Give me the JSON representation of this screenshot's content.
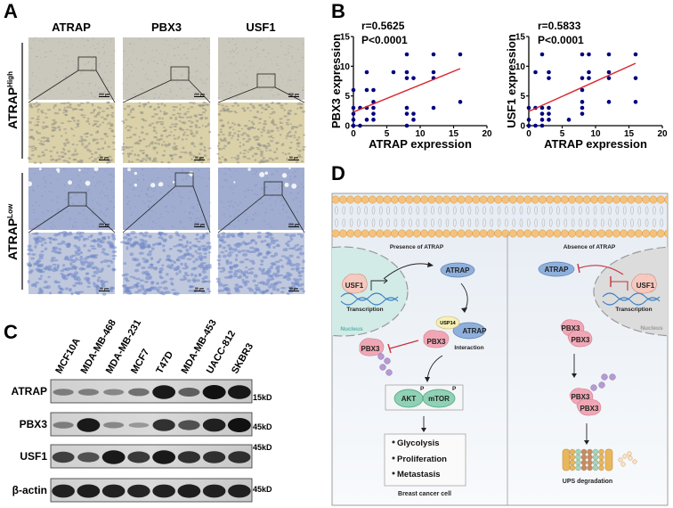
{
  "panel_labels": {
    "a": "A",
    "b": "B",
    "c": "C",
    "d": "D"
  },
  "panel_a": {
    "columns": [
      "ATRAP",
      "PBX3",
      "USF1"
    ],
    "rows": [
      {
        "base": "ATRAP",
        "sup": "High"
      },
      {
        "base": "ATRAP",
        "sup": "Low"
      }
    ],
    "scale_bars": {
      "low_mag": "200 μm",
      "high_mag": "50 μm"
    }
  },
  "chart_data": [
    {
      "type": "scatter",
      "xlabel": "ATRAP expression",
      "ylabel": "PBX3 expression",
      "xlim": [
        0,
        20
      ],
      "ylim": [
        0,
        15
      ],
      "xticks": [
        "0",
        "5",
        "10",
        "15",
        "20"
      ],
      "yticks": [
        "0",
        "5",
        "10",
        "15"
      ],
      "annotations": [
        "r=0.5625",
        "P<0.0001"
      ],
      "grid": false,
      "point_color": "#00007f",
      "line_color": "#d9262b",
      "points": {
        "x": [
          0,
          0,
          0,
          0,
          0,
          1,
          1,
          2,
          2,
          2,
          2,
          3,
          3,
          3,
          3,
          3,
          6,
          8,
          8,
          8,
          8,
          8,
          8,
          9,
          9,
          9,
          12,
          12,
          12,
          12,
          16,
          16
        ],
        "y": [
          6,
          3,
          2,
          1,
          0,
          3,
          0,
          9,
          6,
          3,
          1,
          6,
          4,
          3,
          2,
          1,
          9,
          12,
          9,
          8,
          3,
          2,
          0,
          8,
          2,
          1,
          12,
          9,
          8,
          3,
          12,
          4
        ]
      },
      "fit_line": {
        "x": [
          0,
          16
        ],
        "y": [
          2.3,
          9.6
        ]
      }
    },
    {
      "type": "scatter",
      "xlabel": "ATRAP expression",
      "ylabel": "USF1 expression",
      "xlim": [
        0,
        20
      ],
      "ylim": [
        0,
        15
      ],
      "xticks": [
        "0",
        "5",
        "10",
        "15",
        "20"
      ],
      "yticks": [
        "0",
        "5",
        "10",
        "15"
      ],
      "annotations": [
        "r=0.5833",
        "P<0.0001"
      ],
      "grid": false,
      "point_color": "#00007f",
      "line_color": "#d9262b",
      "points": {
        "x": [
          0,
          0,
          0,
          1,
          1,
          1,
          2,
          2,
          2,
          2,
          2,
          3,
          3,
          3,
          3,
          3,
          6,
          8,
          8,
          8,
          8,
          8,
          8,
          9,
          9,
          9,
          12,
          12,
          12,
          12,
          16,
          16,
          16
        ],
        "y": [
          3,
          1,
          0,
          9,
          3,
          0,
          12,
          3,
          2,
          1,
          0,
          9,
          8,
          3,
          2,
          1,
          1,
          12,
          8,
          6,
          4,
          3,
          2,
          12,
          9,
          8,
          12,
          9,
          8,
          4,
          12,
          8,
          4
        ]
      },
      "fit_line": {
        "x": [
          0,
          16
        ],
        "y": [
          2.4,
          10.5
        ]
      }
    }
  ],
  "panel_c": {
    "lanes": [
      "MCF10A",
      "MDA-MB-468",
      "MDA-MB-231",
      "MCF7",
      "T47D",
      "MDA-MB-453",
      "UACC-812",
      "SKBR3"
    ],
    "blots": [
      {
        "label": "ATRAP",
        "marker": "15kD",
        "intensities": [
          0.3,
          0.3,
          0.25,
          0.4,
          0.95,
          0.5,
          1,
          0.95
        ]
      },
      {
        "label": "PBX3",
        "marker": "45kD",
        "intensities": [
          0.3,
          0.95,
          0.25,
          0.15,
          0.8,
          0.6,
          0.9,
          1
        ]
      },
      {
        "label": "USF1",
        "marker": "45kD",
        "intensities": [
          0.7,
          0.6,
          0.95,
          0.75,
          0.95,
          0.8,
          0.8,
          0.8
        ]
      },
      {
        "label": "β-actin",
        "marker": "45kD",
        "intensities": [
          0.9,
          0.92,
          0.9,
          0.88,
          0.9,
          0.93,
          0.9,
          0.9
        ]
      }
    ]
  },
  "panel_d": {
    "left": {
      "title": "Presence of ATRAP",
      "usf1": "USF1",
      "transcription": "Transcription",
      "nucleus": "Nucleus",
      "atrap": "ATRAP",
      "usp14": "USP14",
      "atrap_complex": "ATRAP",
      "pbx3_complex": "PBX3",
      "interaction": "Interaction",
      "pbx3_ub": "PBX3",
      "ub": "Ub",
      "akt": "AKT",
      "mtor": "mTOR",
      "phospho": "P",
      "outcomes": [
        "Glycolysis",
        "Proliferation",
        "Metastasis"
      ],
      "footer": "Breast cancer cell"
    },
    "right": {
      "title": "Absence of ATRAP",
      "atrap": "ATRAP",
      "usf1": "USF1",
      "transcription": "Transcription",
      "nucleus": "Nucleus",
      "pbx3": "PBX3",
      "ub": "Ub",
      "footer": "UPS degradation"
    },
    "colors": {
      "atrap": "#8fb0dc",
      "pbx3": "#f0a7b5",
      "usf1": "#f6c9bf",
      "akt": "#8fd1b4",
      "usp14": "#f6efb8",
      "ub": "#b59bd2",
      "inhibit": "#c8323c",
      "membrane": "#f4c27c"
    }
  }
}
